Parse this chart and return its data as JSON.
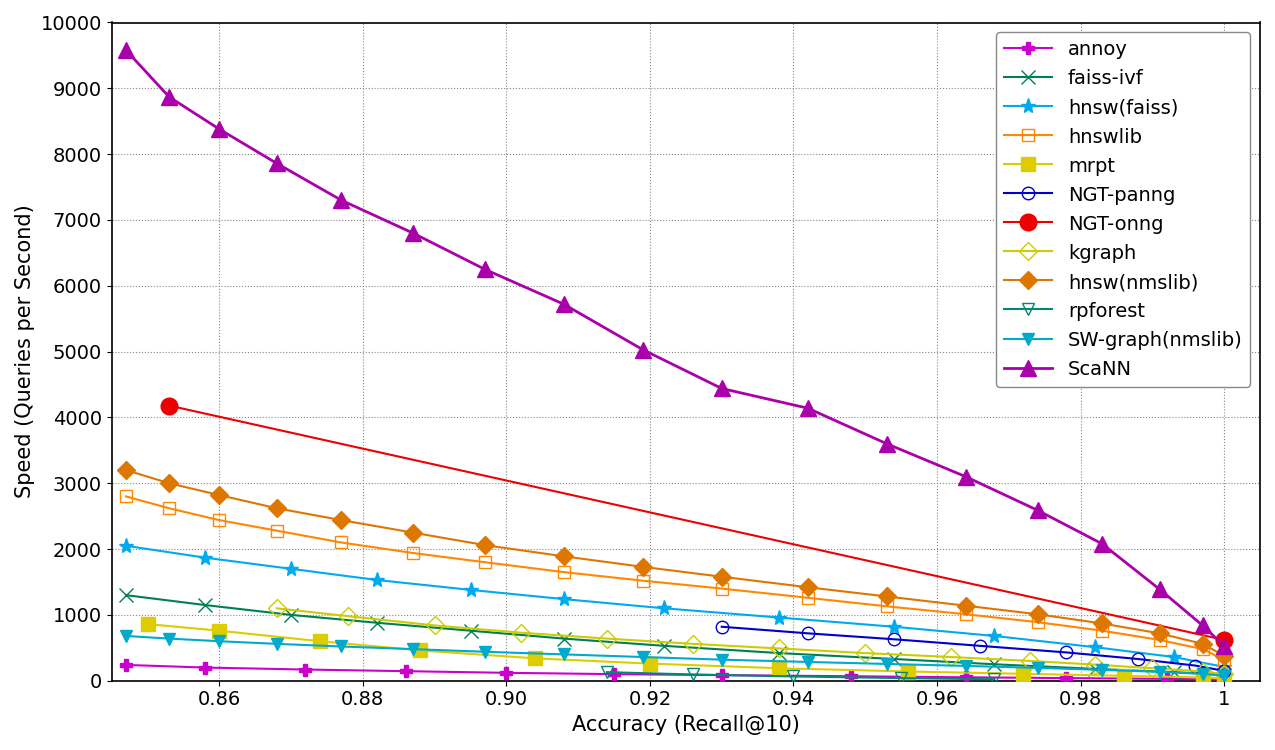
{
  "xlabel": "Accuracy (Recall@10)",
  "ylabel": "Speed (Queries per Second)",
  "xlim": [
    0.845,
    1.005
  ],
  "ylim": [
    0,
    10000
  ],
  "yticks": [
    0,
    1000,
    2000,
    3000,
    4000,
    5000,
    6000,
    7000,
    8000,
    9000,
    10000
  ],
  "xticks": [
    0.86,
    0.88,
    0.9,
    0.92,
    0.94,
    0.96,
    0.98,
    1.0
  ],
  "series": {
    "annoy": {
      "color": "#cc00cc",
      "marker": "P",
      "markersize": 8,
      "linestyle": "-",
      "linewidth": 1.5,
      "markerfacecolor": "#cc00cc",
      "x": [
        0.847,
        0.858,
        0.872,
        0.886,
        0.9,
        0.915,
        0.93,
        0.948,
        0.964,
        0.978,
        0.992,
        1.0
      ],
      "y": [
        240,
        200,
        170,
        145,
        120,
        100,
        85,
        68,
        52,
        40,
        28,
        18
      ]
    },
    "faiss-ivf": {
      "color": "#008050",
      "marker": "x",
      "markersize": 10,
      "linestyle": "-",
      "linewidth": 1.5,
      "markerfacecolor": "#008050",
      "x": [
        0.847,
        0.858,
        0.87,
        0.882,
        0.895,
        0.908,
        0.922,
        0.938,
        0.954,
        0.968,
        0.982,
        0.993,
        1.0
      ],
      "y": [
        1300,
        1150,
        1000,
        880,
        760,
        640,
        530,
        420,
        330,
        250,
        180,
        130,
        90
      ]
    },
    "hnsw(faiss)": {
      "color": "#00aaee",
      "marker": "*",
      "markersize": 11,
      "linestyle": "-",
      "linewidth": 1.5,
      "markerfacecolor": "#00aaee",
      "x": [
        0.847,
        0.858,
        0.87,
        0.882,
        0.895,
        0.908,
        0.922,
        0.938,
        0.954,
        0.968,
        0.982,
        0.993,
        1.0
      ],
      "y": [
        2050,
        1870,
        1700,
        1530,
        1380,
        1240,
        1100,
        960,
        820,
        680,
        510,
        360,
        210
      ]
    },
    "hnswlib": {
      "color": "#ff8800",
      "marker": "s",
      "markersize": 9,
      "linestyle": "-",
      "linewidth": 1.5,
      "markerfacecolor": "none",
      "markeredgecolor": "#ff8800",
      "x": [
        0.847,
        0.853,
        0.86,
        0.868,
        0.877,
        0.887,
        0.897,
        0.908,
        0.919,
        0.93,
        0.942,
        0.953,
        0.964,
        0.974,
        0.983,
        0.991,
        0.997,
        1.0
      ],
      "y": [
        2800,
        2620,
        2440,
        2280,
        2100,
        1940,
        1800,
        1650,
        1520,
        1400,
        1260,
        1130,
        1010,
        890,
        760,
        620,
        480,
        320
      ]
    },
    "mrpt": {
      "color": "#ddcc00",
      "marker": "s",
      "markersize": 10,
      "linestyle": "-",
      "linewidth": 1.5,
      "markerfacecolor": "#ddcc00",
      "x": [
        0.85,
        0.86,
        0.874,
        0.888,
        0.904,
        0.92,
        0.938,
        0.956,
        0.972,
        0.986,
        0.997,
        1.0
      ],
      "y": [
        860,
        760,
        600,
        460,
        340,
        260,
        190,
        140,
        105,
        75,
        50,
        32
      ]
    },
    "NGT-panng": {
      "color": "#0000cc",
      "marker": "o",
      "markersize": 9,
      "linestyle": "-",
      "linewidth": 1.5,
      "markerfacecolor": "none",
      "markeredgecolor": "#0000cc",
      "x": [
        0.93,
        0.942,
        0.954,
        0.966,
        0.978,
        0.988,
        0.996,
        1.0
      ],
      "y": [
        820,
        720,
        630,
        530,
        430,
        330,
        230,
        150
      ]
    },
    "NGT-onng": {
      "color": "#ee0000",
      "marker": "o",
      "markersize": 12,
      "linestyle": "-",
      "linewidth": 1.5,
      "markerfacecolor": "#ee0000",
      "x": [
        0.853,
        1.0
      ],
      "y": [
        4180,
        620
      ]
    },
    "kgraph": {
      "color": "#cccc00",
      "marker": "D",
      "markersize": 9,
      "linestyle": "-",
      "linewidth": 1.5,
      "markerfacecolor": "none",
      "markeredgecolor": "#cccc00",
      "x": [
        0.868,
        0.878,
        0.89,
        0.902,
        0.914,
        0.926,
        0.938,
        0.95,
        0.962,
        0.973,
        0.982,
        0.99,
        0.997,
        1.0
      ],
      "y": [
        1100,
        980,
        840,
        730,
        640,
        560,
        490,
        420,
        360,
        300,
        245,
        190,
        140,
        100
      ]
    },
    "hnsw(nmslib)": {
      "color": "#dd7700",
      "marker": "D",
      "markersize": 9,
      "linestyle": "-",
      "linewidth": 1.5,
      "markerfacecolor": "#dd7700",
      "x": [
        0.847,
        0.853,
        0.86,
        0.868,
        0.877,
        0.887,
        0.897,
        0.908,
        0.919,
        0.93,
        0.942,
        0.953,
        0.964,
        0.974,
        0.983,
        0.991,
        0.997,
        1.0
      ],
      "y": [
        3200,
        3000,
        2820,
        2620,
        2440,
        2250,
        2060,
        1890,
        1730,
        1580,
        1420,
        1280,
        1140,
        1010,
        870,
        720,
        560,
        380
      ]
    },
    "rpforest": {
      "color": "#008877",
      "marker": "v",
      "markersize": 9,
      "linestyle": "-",
      "linewidth": 1.5,
      "markerfacecolor": "none",
      "markeredgecolor": "#008877",
      "x": [
        0.914,
        0.926,
        0.94,
        0.955,
        0.968
      ],
      "y": [
        130,
        95,
        65,
        40,
        22
      ]
    },
    "SW-graph(nmslib)": {
      "color": "#00aacc",
      "marker": "v",
      "markersize": 9,
      "linestyle": "-",
      "linewidth": 1.5,
      "markerfacecolor": "#00aacc",
      "x": [
        0.847,
        0.853,
        0.86,
        0.868,
        0.877,
        0.887,
        0.897,
        0.908,
        0.919,
        0.93,
        0.942,
        0.953,
        0.964,
        0.974,
        0.983,
        0.991,
        0.997,
        1.0
      ],
      "y": [
        680,
        640,
        600,
        560,
        520,
        480,
        440,
        400,
        360,
        320,
        285,
        255,
        225,
        195,
        165,
        135,
        105,
        75
      ]
    },
    "ScaNN": {
      "color": "#aa00aa",
      "marker": "^",
      "markersize": 11,
      "linestyle": "-",
      "linewidth": 2.0,
      "markerfacecolor": "#aa00aa",
      "x": [
        0.847,
        0.853,
        0.86,
        0.868,
        0.877,
        0.887,
        0.897,
        0.908,
        0.919,
        0.93,
        0.942,
        0.953,
        0.964,
        0.974,
        0.983,
        0.991,
        0.997,
        1.0
      ],
      "y": [
        9580,
        8870,
        8380,
        7860,
        7300,
        6800,
        6250,
        5720,
        5030,
        4440,
        4140,
        3600,
        3100,
        2590,
        2080,
        1390,
        840,
        530
      ]
    }
  },
  "legend_order": [
    "annoy",
    "faiss-ivf",
    "hnsw(faiss)",
    "hnswlib",
    "mrpt",
    "NGT-panng",
    "NGT-onng",
    "kgraph",
    "hnsw(nmslib)",
    "rpforest",
    "SW-graph(nmslib)",
    "ScaNN"
  ],
  "bg_color": "#ffffff",
  "font_size": 14
}
